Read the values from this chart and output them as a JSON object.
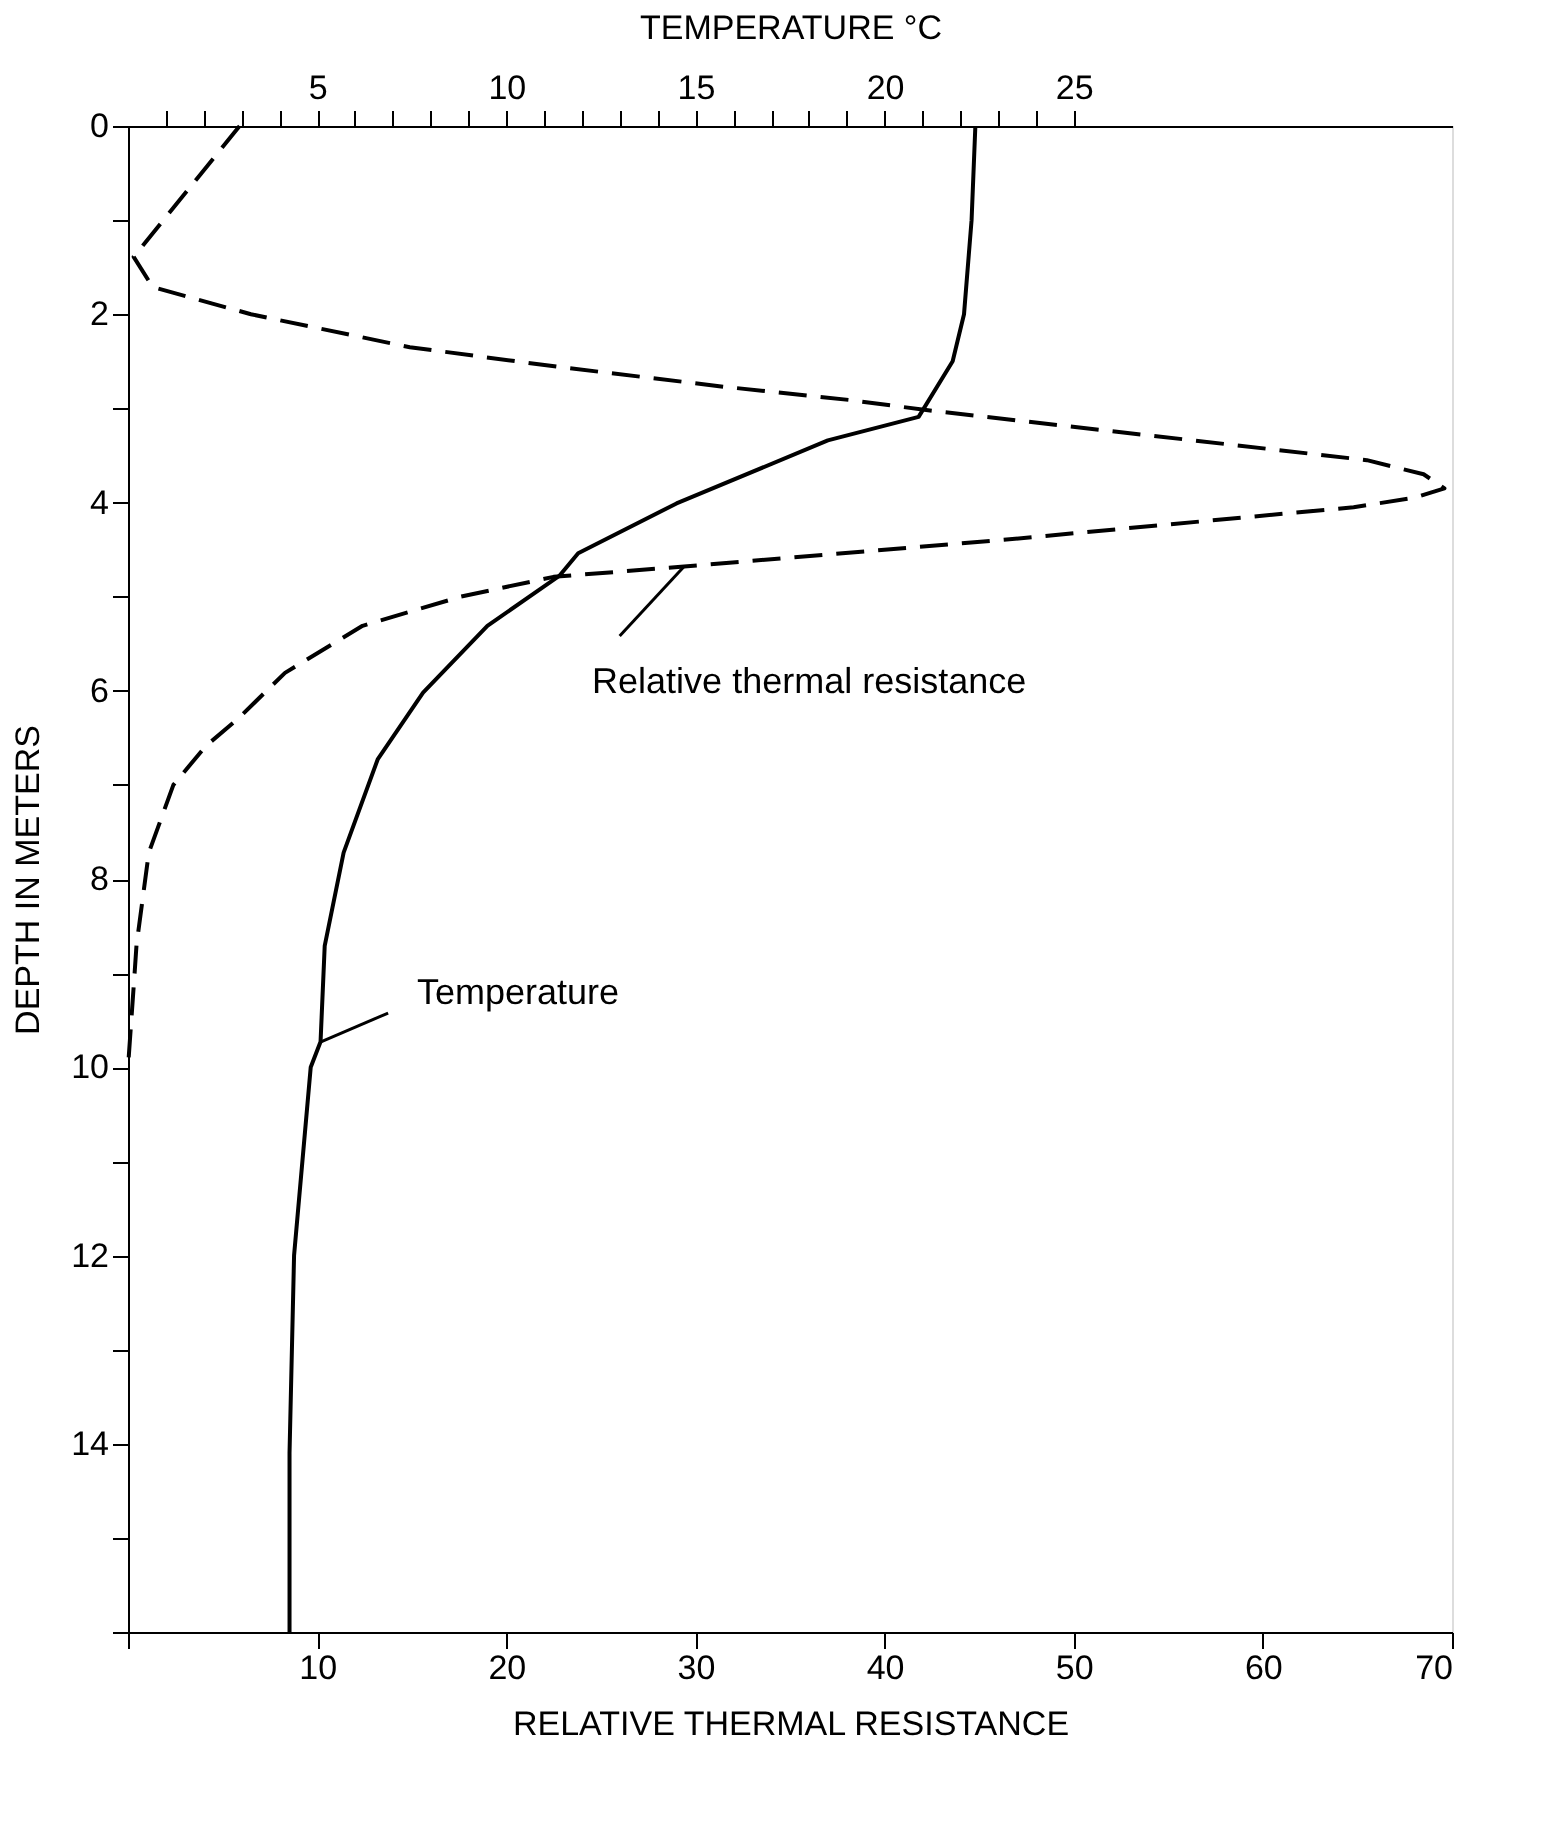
{
  "chart_data": {
    "type": "line",
    "xlabel": "RELATIVE THERMAL RESISTANCE",
    "x2label": "TEMPERATURE °C",
    "ylabel": "DEPTH IN METERS",
    "xlim": [
      0,
      70
    ],
    "xticks": [
      {
        "value": 0,
        "label": null
      },
      10,
      20,
      30,
      40,
      50,
      60,
      70
    ],
    "x2lim": [
      0,
      35
    ],
    "x2ticks": [
      {
        "value": 1,
        "label": null
      },
      {
        "value": 2,
        "label": null
      },
      {
        "value": 3,
        "label": null
      },
      {
        "value": 4,
        "label": null
      },
      5,
      {
        "value": 6,
        "label": null
      },
      {
        "value": 7,
        "label": null
      },
      {
        "value": 8,
        "label": null
      },
      {
        "value": 9,
        "label": null
      },
      10,
      {
        "value": 11,
        "label": null
      },
      {
        "value": 12,
        "label": null
      },
      {
        "value": 13,
        "label": null
      },
      {
        "value": 14,
        "label": null
      },
      15,
      {
        "value": 16,
        "label": null
      },
      {
        "value": 17,
        "label": null
      },
      {
        "value": 18,
        "label": null
      },
      {
        "value": 19,
        "label": null
      },
      20,
      {
        "value": 21,
        "label": null
      },
      {
        "value": 22,
        "label": null
      },
      {
        "value": 23,
        "label": null
      },
      {
        "value": 24,
        "label": null
      },
      25
    ],
    "ylim": [
      16,
      0
    ],
    "yticks": [
      0,
      {
        "value": 1,
        "label": null
      },
      2,
      {
        "value": 3,
        "label": null
      },
      4,
      {
        "value": 5,
        "label": null
      },
      6,
      {
        "value": 7,
        "label": null
      },
      8,
      {
        "value": 9,
        "label": null
      },
      10,
      {
        "value": 11,
        "label": null
      },
      12,
      {
        "value": 13,
        "label": null
      },
      14,
      {
        "value": 15,
        "label": null
      },
      {
        "value": 16,
        "label": null
      }
    ],
    "grid": false,
    "marker": "none",
    "annotations": [
      {
        "text": "Relative thermal resistance",
        "x": 29.4,
        "y": 4.68
      },
      {
        "text": "Temperature",
        "x": 10.2,
        "y": 9.73
      }
    ],
    "series": [
      {
        "color": "#000000",
        "line_style": "dashed",
        "x": [
          5.9,
          0.3,
          1.3,
          6.5,
          14.9,
          22.8,
          31.5,
          38.1,
          42.3,
          65.5,
          68.5,
          69.6,
          68.0,
          64.8,
          46.1,
          29.4,
          22.5,
          17.6,
          12.4,
          8.3,
          5.8,
          4.1,
          2.4,
          1.1,
          0.45,
          0.35,
          0
        ],
        "values": [
          0,
          1.39,
          1.71,
          2.0,
          2.35,
          2.56,
          2.77,
          2.91,
          3.02,
          3.55,
          3.7,
          3.85,
          3.95,
          4.05,
          4.4,
          4.68,
          4.79,
          5.0,
          5.31,
          5.81,
          6.3,
          6.59,
          7.0,
          7.72,
          8.7,
          9.0,
          10.0
        ]
      },
      {
        "color": "#000000",
        "line_style": "solid",
        "axis": "x2",
        "x": [
          22.4,
          22.3,
          22.1,
          21.8,
          20.9,
          18.5,
          14.5,
          11.9,
          11.4,
          9.5,
          7.8,
          6.6,
          5.7,
          5.2,
          5.09,
          4.83,
          4.39,
          4.27,
          4.27
        ],
        "values": [
          0,
          1.0,
          2.0,
          2.5,
          3.09,
          3.34,
          4.01,
          4.54,
          4.78,
          5.31,
          6.02,
          6.73,
          7.72,
          8.71,
          9.73,
          10,
          12,
          14.1,
          16
        ]
      }
    ]
  }
}
